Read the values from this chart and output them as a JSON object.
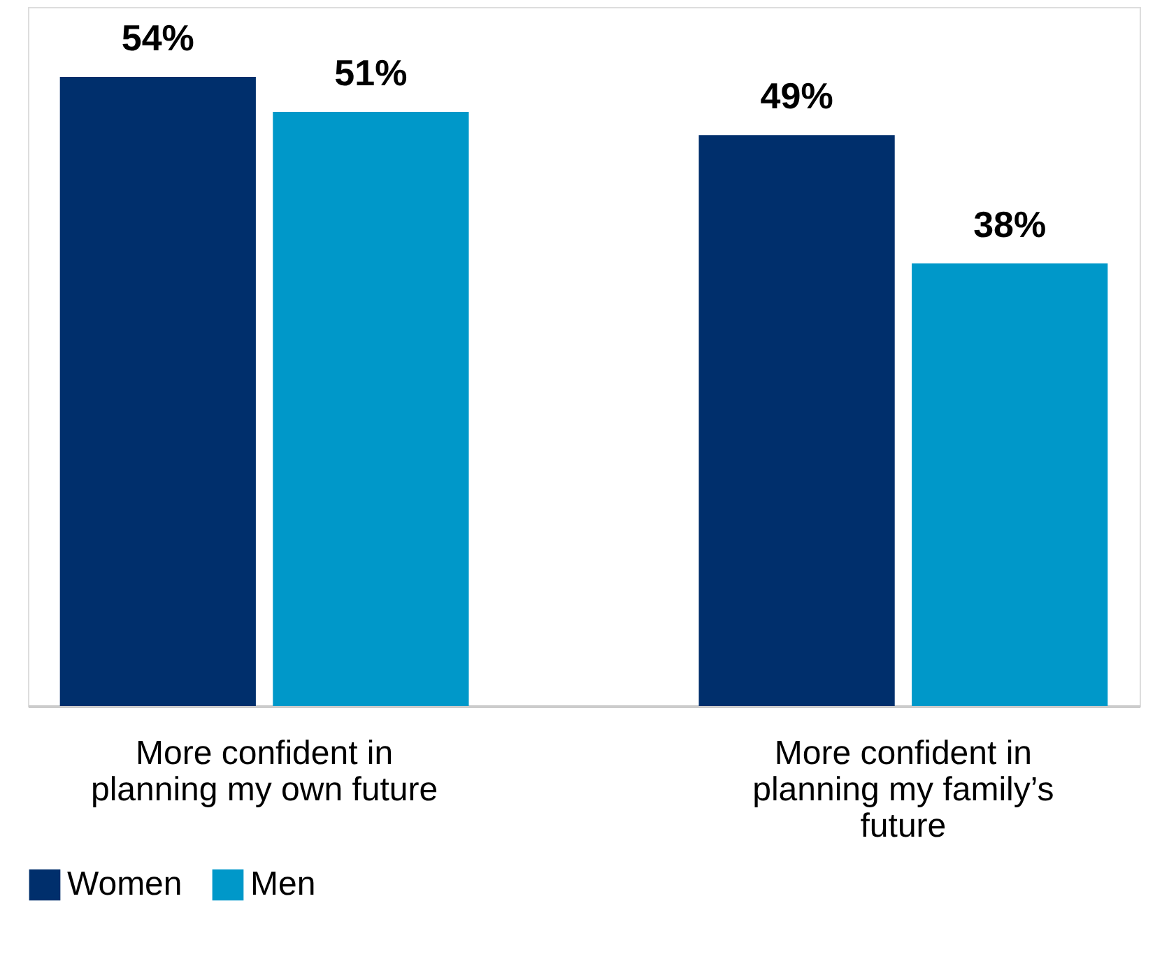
{
  "chart_data": {
    "type": "bar",
    "categories": [
      "More confident in planning my own future",
      "More confident in planning my family’s future"
    ],
    "series": [
      {
        "name": "Women",
        "color": "#002f6c",
        "values": [
          54,
          49
        ],
        "value_labels": [
          "54%",
          "49%"
        ]
      },
      {
        "name": "Men",
        "color": "#0098c9",
        "values": [
          51,
          38
        ],
        "value_labels": [
          "51%",
          "38%"
        ]
      }
    ],
    "legend": "bottom",
    "grid": false
  }
}
